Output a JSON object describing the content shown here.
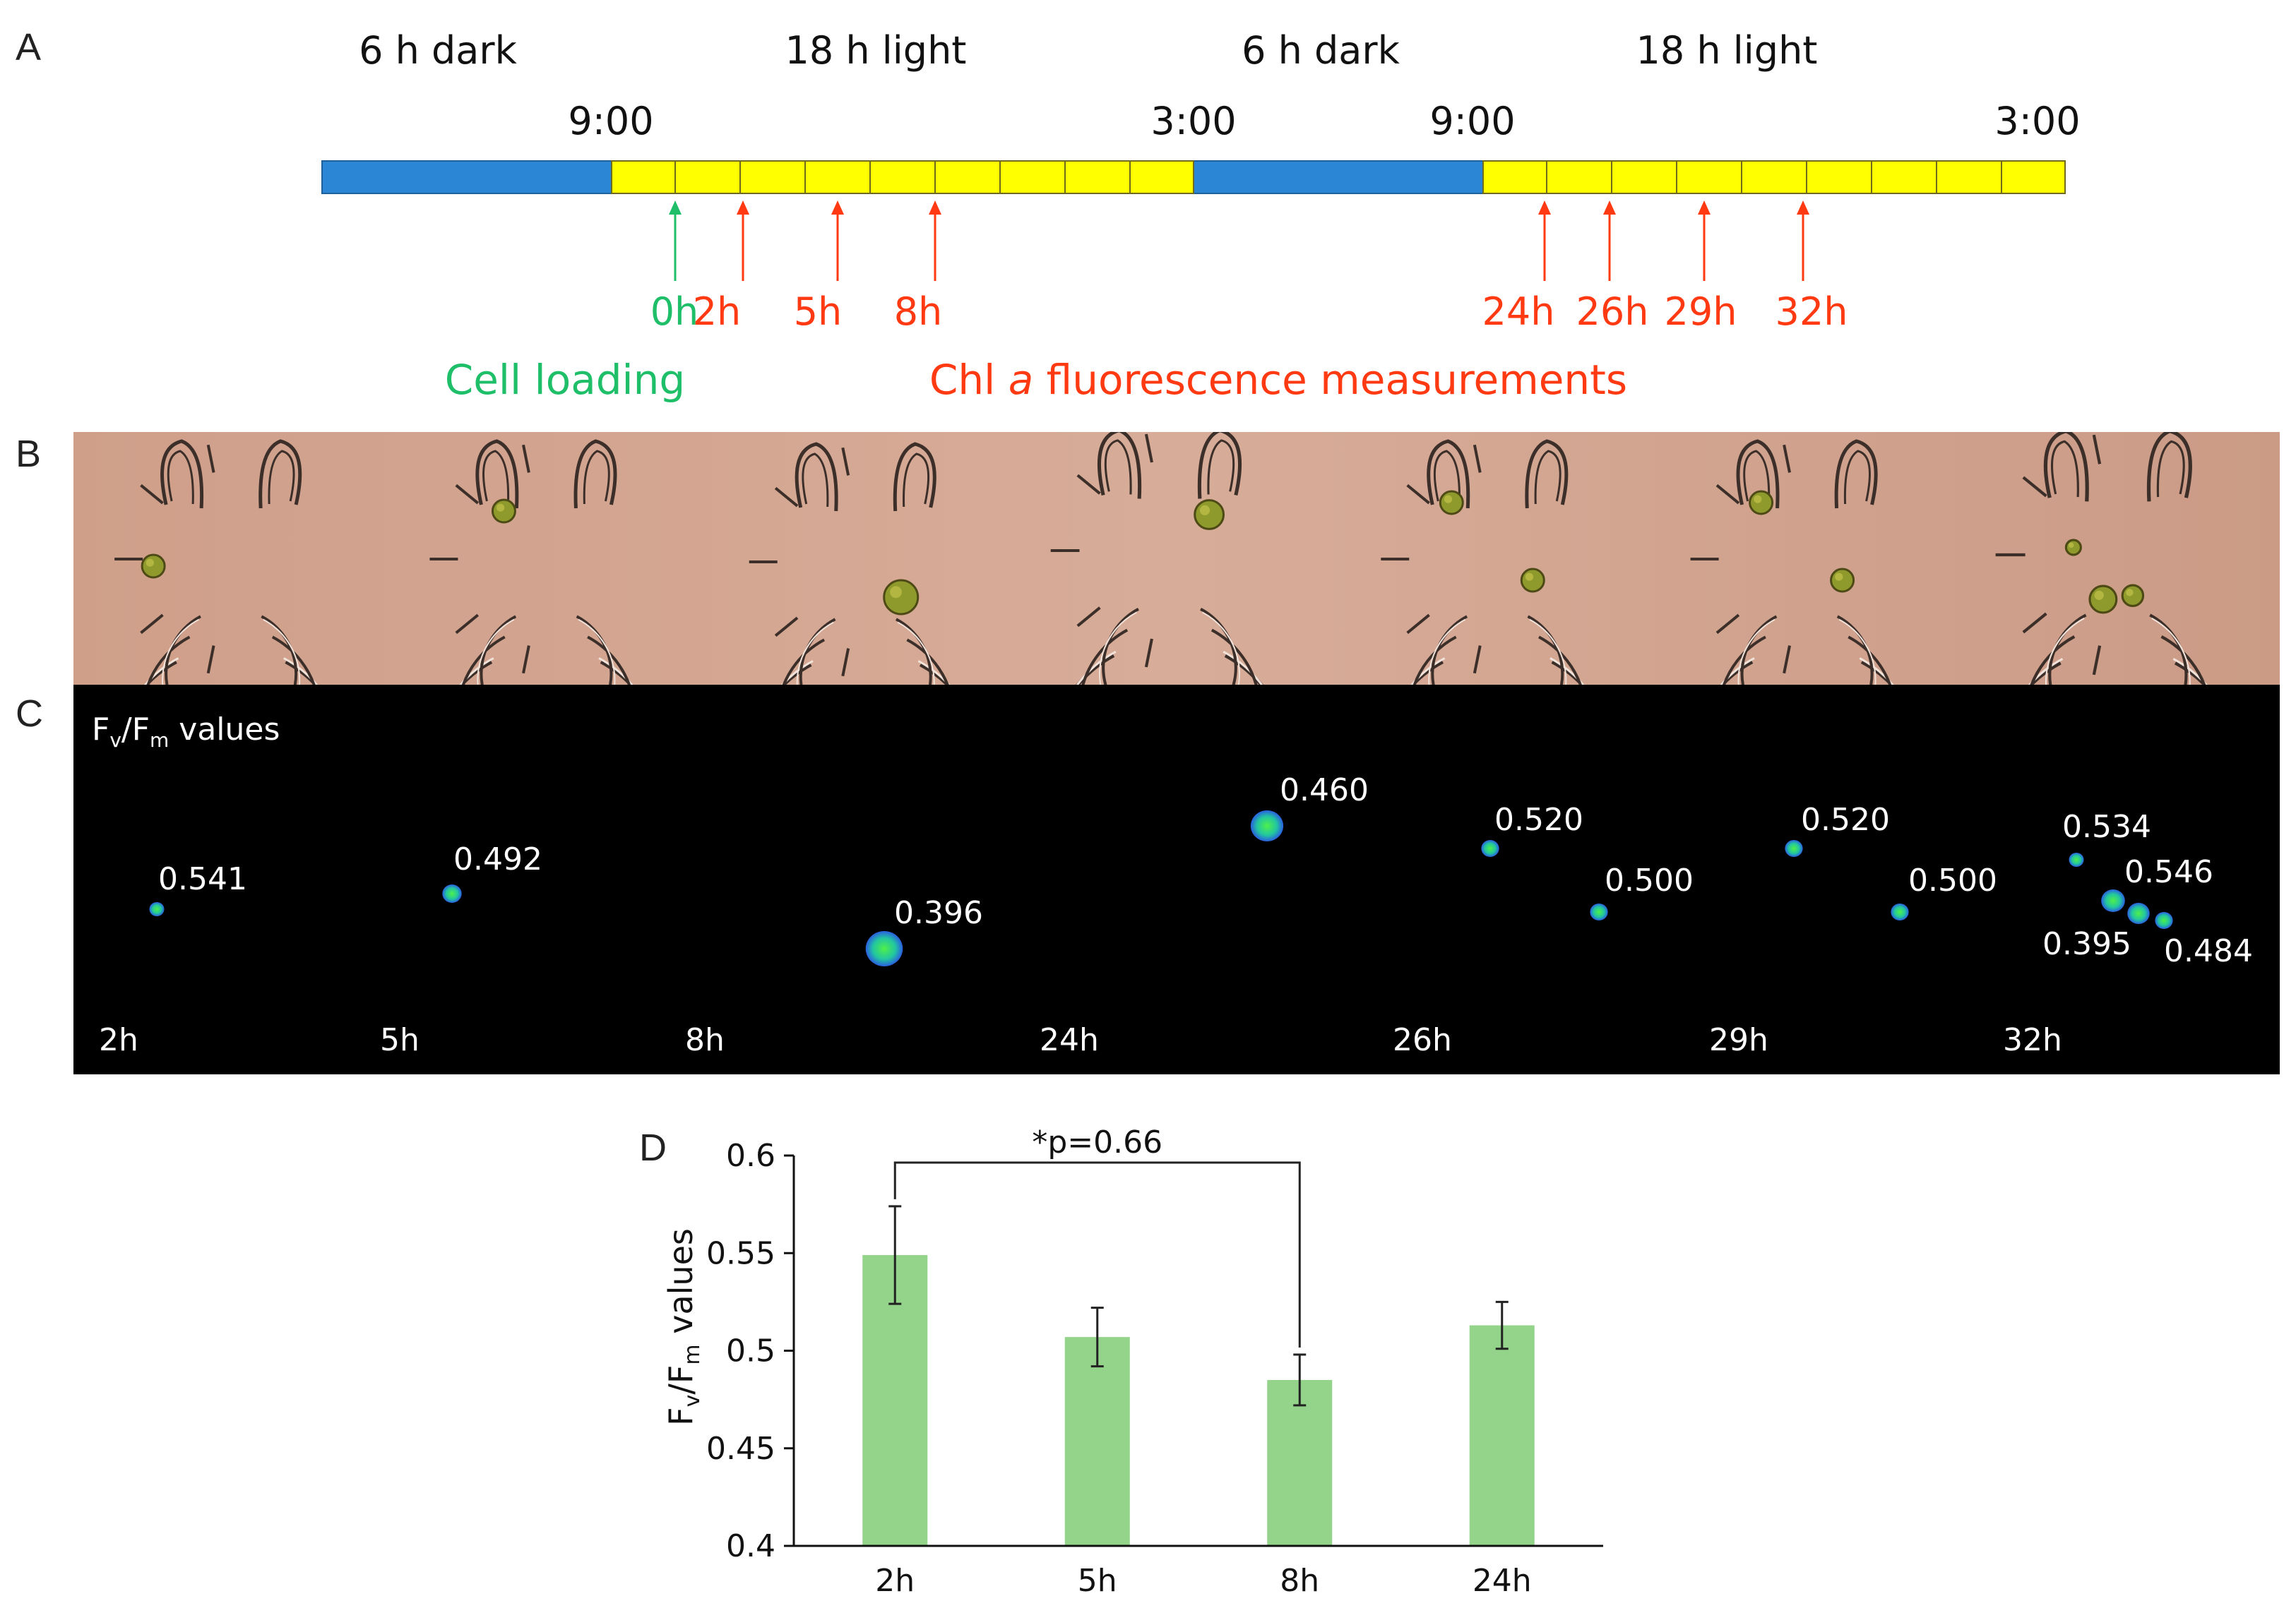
{
  "panel_labels": {
    "a": "A",
    "b": "B",
    "c": "C",
    "d": "D"
  },
  "timeline": {
    "periods": [
      "6 h dark",
      "18 h light",
      "6 h dark",
      "18 h light"
    ],
    "times": [
      "9:00",
      "3:00",
      "9:00",
      "3:00"
    ],
    "loading_marker": "0h",
    "measure_markers": [
      "2h",
      "5h",
      "8h",
      "24h",
      "26h",
      "29h",
      "32h"
    ],
    "loading_caption": "Cell loading",
    "measure_caption_pre": "Chl ",
    "measure_caption_italic": "a",
    "measure_caption_post": " fluorescence measurements",
    "colors": {
      "dark": "#2b86d6",
      "light": "#ffff00",
      "loading": "#1fbf6a",
      "measure": "#ff3a12"
    }
  },
  "fluorescence": {
    "title_main": "F",
    "title_sub_v": "v",
    "title_slash": "/F",
    "title_sub_m": "m",
    "title_tail": " values",
    "frames": [
      {
        "time": "2h",
        "values": [
          "0.541"
        ]
      },
      {
        "time": "5h",
        "values": [
          "0.492"
        ]
      },
      {
        "time": "8h",
        "values": [
          "0.396"
        ]
      },
      {
        "time": "24h",
        "values": [
          "0.460"
        ]
      },
      {
        "time": "26h",
        "values": [
          "0.520",
          "0.500"
        ]
      },
      {
        "time": "29h",
        "values": [
          "0.520",
          "0.500"
        ]
      },
      {
        "time": "32h",
        "values": [
          "0.534",
          "0.546",
          "0.395",
          "0.484"
        ]
      }
    ]
  },
  "chart_data": {
    "type": "bar",
    "categories": [
      "2h",
      "5h",
      "8h",
      "24h"
    ],
    "values": [
      0.549,
      0.507,
      0.485,
      0.513
    ],
    "errors": [
      0.025,
      0.015,
      0.013,
      0.012
    ],
    "ylim": [
      0.4,
      0.6
    ],
    "yticks": [
      "0.4",
      "0.45",
      "0.5",
      "0.55",
      "0.6"
    ],
    "ytick_values": [
      0.4,
      0.45,
      0.5,
      0.55,
      0.6
    ],
    "ylabel_main": "F",
    "ylabel_sub_v": "v",
    "ylabel_slash": "/F",
    "ylabel_sub_m": "m",
    "ylabel_tail": " values",
    "xlabel": "",
    "annotation": "*p=0.66",
    "bracket_between": [
      "2h",
      "8h"
    ],
    "bar_color": "#93d38a"
  }
}
